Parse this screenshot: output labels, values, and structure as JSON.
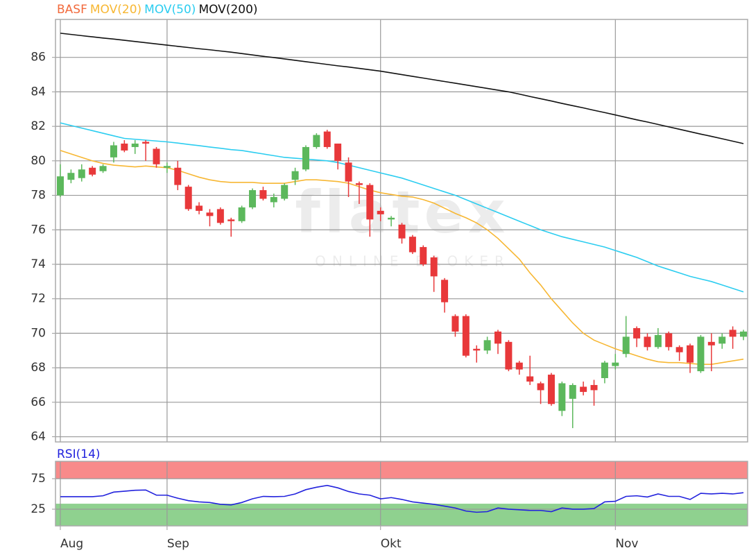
{
  "chart_data": [
    {
      "type": "candlestick",
      "categories": [
        "Aug",
        null,
        null,
        null,
        null,
        null,
        null,
        null,
        null,
        null,
        "Sep",
        null,
        null,
        null,
        null,
        null,
        null,
        null,
        null,
        null,
        null,
        null,
        null,
        null,
        null,
        null,
        null,
        null,
        null,
        null,
        "Okt",
        null,
        null,
        null,
        null,
        null,
        null,
        null,
        null,
        null,
        null,
        null,
        null,
        null,
        null,
        null,
        null,
        null,
        null,
        null,
        null,
        null,
        "Nov",
        null,
        null,
        null,
        null,
        null,
        null,
        null,
        null,
        null,
        null,
        null,
        null
      ],
      "ohlc": {
        "name": "BASF",
        "color": "#f26a3c",
        "up_color": "#5cb85c",
        "down_color": "#e8383a",
        "open": [
          78.0,
          78.9,
          79.0,
          79.6,
          79.4,
          80.2,
          81.0,
          80.8,
          81.1,
          80.7,
          79.6,
          79.6,
          78.5,
          77.4,
          77.0,
          77.2,
          76.6,
          76.5,
          77.3,
          78.3,
          77.6,
          77.8,
          78.9,
          79.5,
          80.8,
          81.7,
          81.0,
          79.9,
          78.7,
          78.6,
          77.1,
          76.6,
          76.3,
          75.6,
          75.0,
          74.4,
          73.1,
          71.0,
          71.0,
          69.1,
          69.0,
          70.1,
          69.5,
          68.3,
          67.5,
          67.1,
          67.6,
          65.5,
          66.2,
          66.9,
          67.0,
          67.4,
          68.1,
          68.8,
          70.3,
          69.8,
          69.2,
          70.0,
          69.2,
          69.3,
          67.8,
          69.5,
          69.4,
          70.2,
          69.8
        ],
        "high": [
          79.8,
          79.5,
          79.8,
          79.7,
          79.8,
          81.1,
          81.2,
          81.2,
          81.2,
          80.8,
          79.9,
          80.0,
          78.6,
          77.6,
          77.2,
          77.3,
          76.7,
          77.4,
          78.4,
          78.5,
          78.1,
          78.7,
          79.6,
          80.9,
          81.6,
          81.8,
          81.0,
          80.2,
          78.8,
          78.7,
          77.3,
          76.8,
          76.4,
          75.7,
          75.1,
          74.5,
          73.2,
          71.1,
          71.1,
          69.3,
          69.8,
          70.2,
          69.6,
          68.4,
          68.7,
          67.2,
          67.7,
          67.2,
          67.1,
          67.2,
          67.3,
          68.4,
          68.8,
          71.0,
          70.4,
          70.0,
          70.3,
          70.1,
          69.3,
          69.4,
          69.9,
          70.0,
          70.0,
          70.4,
          70.2
        ],
        "low": [
          77.9,
          78.7,
          78.8,
          79.1,
          79.3,
          79.9,
          80.5,
          80.4,
          80.0,
          79.6,
          79.3,
          78.3,
          77.1,
          76.9,
          76.2,
          76.3,
          75.6,
          76.4,
          77.2,
          77.7,
          77.3,
          77.7,
          78.6,
          79.4,
          80.7,
          80.7,
          79.5,
          77.9,
          77.5,
          75.6,
          76.5,
          76.2,
          75.2,
          74.6,
          73.9,
          72.4,
          71.2,
          69.8,
          68.6,
          68.3,
          68.8,
          68.8,
          67.8,
          67.6,
          67.0,
          65.9,
          65.8,
          65.2,
          64.5,
          66.4,
          65.8,
          67.1,
          67.9,
          68.6,
          69.2,
          69.0,
          69.1,
          69.0,
          68.4,
          67.7,
          67.7,
          67.8,
          69.1,
          69.1,
          69.6
        ],
        "close": [
          79.1,
          79.3,
          79.5,
          79.2,
          79.7,
          80.9,
          80.6,
          81.0,
          81.0,
          79.8,
          79.7,
          78.6,
          77.2,
          77.1,
          76.8,
          76.4,
          76.5,
          77.3,
          78.3,
          77.8,
          77.9,
          78.6,
          79.4,
          80.8,
          81.5,
          80.8,
          80.0,
          78.8,
          78.6,
          76.6,
          76.9,
          76.7,
          75.5,
          74.7,
          74.0,
          73.3,
          71.8,
          70.1,
          68.7,
          69.0,
          69.6,
          69.4,
          67.9,
          67.9,
          67.2,
          66.7,
          65.9,
          67.1,
          67.0,
          66.6,
          66.7,
          68.3,
          68.3,
          69.8,
          69.7,
          69.2,
          69.9,
          69.2,
          68.9,
          68.3,
          69.8,
          69.3,
          69.8,
          69.8,
          70.1
        ]
      },
      "series": [
        {
          "name": "MOV(20)",
          "color": "#f7b733",
          "values": [
            80.6,
            80.4,
            80.2,
            80.0,
            79.85,
            79.75,
            79.7,
            79.65,
            79.7,
            79.65,
            79.6,
            79.45,
            79.25,
            79.05,
            78.9,
            78.8,
            78.75,
            78.75,
            78.75,
            78.7,
            78.7,
            78.7,
            78.8,
            78.9,
            78.9,
            78.85,
            78.8,
            78.7,
            78.5,
            78.3,
            78.15,
            78.05,
            77.95,
            77.9,
            77.75,
            77.55,
            77.25,
            76.95,
            76.7,
            76.4,
            76.0,
            75.5,
            74.9,
            74.3,
            73.5,
            72.8,
            72.0,
            71.3,
            70.6,
            70.0,
            69.6,
            69.35,
            69.1,
            68.9,
            68.7,
            68.5,
            68.35,
            68.3,
            68.3,
            68.25,
            68.2,
            68.2,
            68.3,
            68.4,
            68.5
          ]
        },
        {
          "name": "MOV(50)",
          "color": "#2ccdf0",
          "values": [
            82.2,
            82.05,
            81.9,
            81.75,
            81.6,
            81.45,
            81.3,
            81.25,
            81.2,
            81.15,
            81.1,
            81.03,
            80.95,
            80.88,
            80.8,
            80.73,
            80.65,
            80.6,
            80.5,
            80.4,
            80.3,
            80.2,
            80.15,
            80.1,
            80.05,
            80.0,
            79.9,
            79.75,
            79.6,
            79.45,
            79.3,
            79.15,
            79.0,
            78.8,
            78.6,
            78.4,
            78.2,
            78.0,
            77.75,
            77.5,
            77.25,
            77.0,
            76.75,
            76.5,
            76.25,
            76.0,
            75.8,
            75.6,
            75.45,
            75.3,
            75.15,
            75.0,
            74.8,
            74.6,
            74.4,
            74.15,
            73.9,
            73.7,
            73.5,
            73.3,
            73.15,
            73.0,
            72.8,
            72.6,
            72.4
          ]
        },
        {
          "name": "MOV(200)",
          "color": "#111111",
          "values": [
            87.4,
            87.33,
            87.26,
            87.19,
            87.12,
            87.06,
            86.99,
            86.92,
            86.85,
            86.78,
            86.71,
            86.64,
            86.57,
            86.5,
            86.44,
            86.37,
            86.3,
            86.22,
            86.14,
            86.06,
            85.99,
            85.91,
            85.83,
            85.75,
            85.67,
            85.59,
            85.51,
            85.44,
            85.36,
            85.28,
            85.2,
            85.1,
            85.0,
            84.9,
            84.8,
            84.7,
            84.6,
            84.5,
            84.4,
            84.3,
            84.2,
            84.1,
            84.0,
            83.87,
            83.73,
            83.6,
            83.47,
            83.33,
            83.2,
            83.07,
            82.93,
            82.8,
            82.66,
            82.52,
            82.38,
            82.25,
            82.11,
            81.97,
            81.83,
            81.69,
            81.55,
            81.42,
            81.28,
            81.14,
            81.0
          ]
        }
      ],
      "ylim": [
        63.7,
        88.2
      ],
      "yticks": [
        64,
        66,
        68,
        70,
        72,
        74,
        76,
        78,
        80,
        82,
        84,
        86
      ],
      "grid": true,
      "watermark": {
        "title": "flatex",
        "subtitle": "ONLINE BROKER"
      }
    },
    {
      "type": "line",
      "series": [
        {
          "name": "RSI(14)",
          "color": "#2222dd",
          "values": [
            45.5,
            45.5,
            45.5,
            45.5,
            47,
            53,
            54.5,
            56,
            56.5,
            48,
            48,
            43,
            39,
            37,
            36,
            33,
            32,
            36,
            42,
            46,
            45.5,
            46,
            50,
            57,
            61,
            64,
            60,
            54,
            50,
            48,
            42,
            44,
            41,
            37,
            35,
            33,
            30,
            27,
            22,
            20,
            21,
            27,
            25,
            24,
            23,
            23,
            21,
            27,
            25,
            25,
            26,
            37,
            38,
            46,
            47,
            45,
            50,
            46,
            46,
            41,
            51,
            50,
            51,
            50,
            52
          ]
        }
      ],
      "ylim": [
        -2.3,
        103.4
      ],
      "yticks": [
        25,
        75
      ],
      "grid": true,
      "bands": [
        {
          "from": 75,
          "to": 103.4,
          "color": "#f88a8a"
        },
        {
          "from": -2.3,
          "to": 34,
          "color": "#8fd18f"
        }
      ]
    }
  ]
}
